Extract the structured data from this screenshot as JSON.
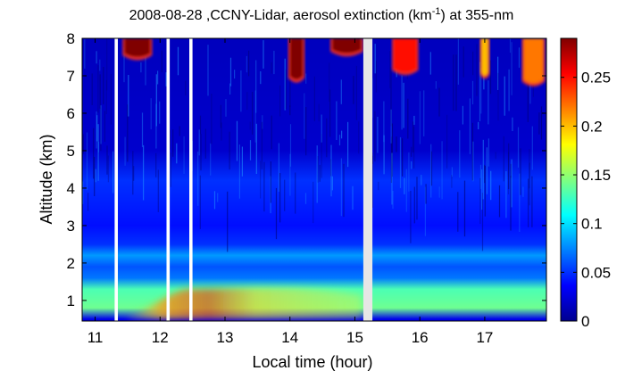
{
  "chart_data": {
    "type": "heatmap",
    "title_main": "2008-08-28 ,CCNY-Lidar, aerosol extinction (km",
    "title_sup": "-1",
    "title_end": ") at 355-nm",
    "xlabel": "Local time (hour)",
    "ylabel": "Altitude (km)",
    "xlim": [
      10.8,
      17.95
    ],
    "ylim": [
      0.45,
      8.0
    ],
    "x_ticks": [
      11,
      12,
      13,
      14,
      15,
      16,
      17
    ],
    "y_ticks": [
      1,
      2,
      3,
      4,
      5,
      6,
      7,
      8
    ],
    "colorbar": {
      "colormap": "jet",
      "range": [
        0,
        0.29
      ],
      "ticks": [
        0,
        0.05,
        0.1,
        0.15,
        0.2,
        0.25
      ]
    },
    "data_gaps": [
      {
        "start": 11.3,
        "end": 11.35,
        "color": "#ffffff"
      },
      {
        "start": 12.1,
        "end": 12.15,
        "color": "#ffffff"
      },
      {
        "start": 12.45,
        "end": 12.5,
        "color": "#ffffff"
      },
      {
        "start": 15.13,
        "end": 15.27,
        "color": "#e6e6e6"
      }
    ],
    "altitude_profile": [
      {
        "altitude": 0.5,
        "value": 0.03
      },
      {
        "altitude": 0.8,
        "value": 0.14
      },
      {
        "altitude": 1.3,
        "value": 0.13
      },
      {
        "altitude": 1.6,
        "value": 0.07
      },
      {
        "altitude": 1.9,
        "value": 0.06
      },
      {
        "altitude": 2.2,
        "value": 0.08
      },
      {
        "altitude": 2.5,
        "value": 0.05
      },
      {
        "altitude": 3.0,
        "value": 0.04
      },
      {
        "altitude": 3.6,
        "value": 0.045
      },
      {
        "altitude": 4.2,
        "value": 0.05
      },
      {
        "altitude": 5.0,
        "value": 0.02
      },
      {
        "altitude": 8.0,
        "value": 0.015
      }
    ],
    "boundary_layer_enhancement": {
      "time_range": [
        11.5,
        15.1
      ],
      "altitude_range": [
        0.5,
        1.3
      ],
      "peak_value": 0.22,
      "peak_time": 12.4
    },
    "cloud_features": [
      {
        "time_start": 11.45,
        "time_end": 11.85,
        "base_altitude": 7.5,
        "value": 0.29
      },
      {
        "time_start": 14.0,
        "time_end": 14.2,
        "base_altitude": 6.9,
        "value": 0.29
      },
      {
        "time_start": 14.65,
        "time_end": 15.1,
        "base_altitude": 7.6,
        "value": 0.29
      },
      {
        "time_start": 15.6,
        "time_end": 15.95,
        "base_altitude": 7.1,
        "value": 0.25
      },
      {
        "time_start": 16.95,
        "time_end": 17.05,
        "base_altitude": 7.0,
        "value": 0.2
      },
      {
        "time_start": 17.6,
        "time_end": 17.9,
        "base_altitude": 6.8,
        "value": 0.22
      }
    ]
  }
}
